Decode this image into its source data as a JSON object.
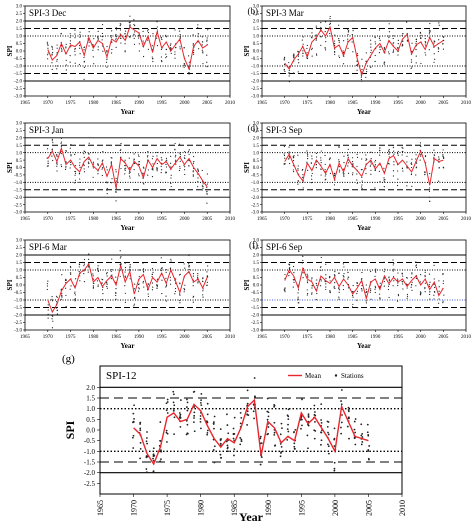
{
  "panels": [
    {
      "id": "a",
      "label": "(a)",
      "title": "SPI-3 Dec",
      "xlabel": "Year",
      "ylabel": "SPI",
      "x_ticks": [
        "1965",
        "1970",
        "1975",
        "1980",
        "1985",
        "1990",
        "1995",
        "2000",
        "2005",
        "2010"
      ],
      "y_ticks": [
        "3.0",
        "2.5",
        "2.0",
        "1.5",
        "1.0",
        "0.5",
        "0.0",
        "-0.5",
        "-1.0",
        "-1.5",
        "-2.0",
        "-2.5",
        "-3.0"
      ],
      "blue_lines": false
    },
    {
      "id": "b",
      "label": "(b)",
      "title": "SPI-3 Mar",
      "xlabel": "Year",
      "ylabel": "SPI",
      "x_ticks": [
        "1965",
        "1970",
        "1975",
        "1980",
        "1985",
        "1990",
        "1995",
        "2000",
        "2005",
        "2010"
      ],
      "y_ticks": [
        "3.0",
        "2.5",
        "2.0",
        "1.5",
        "1.0",
        "0.5",
        "0.0",
        "-0.5",
        "-1.0",
        "-1.5",
        "-2.0",
        "-2.5",
        "-3.0"
      ],
      "blue_lines": false
    },
    {
      "id": "c",
      "label": "(c)",
      "title": "SPI-3 Jan",
      "xlabel": "Year",
      "ylabel": "SPI",
      "x_ticks": [
        "1965",
        "1970",
        "1975",
        "1980",
        "1985",
        "1990",
        "1995",
        "2000",
        "2005",
        "2010"
      ],
      "y_ticks": [
        "3.0",
        "2.5",
        "2.0",
        "1.5",
        "1.0",
        "0.5",
        "0.0",
        "-0.5",
        "-1.0",
        "-1.5",
        "-2.0",
        "-2.5",
        "-3.0"
      ],
      "blue_lines": false
    },
    {
      "id": "d",
      "label": "(d)",
      "title": "SPI-3 Sep",
      "xlabel": "Year",
      "ylabel": "SPI",
      "x_ticks": [
        "1965",
        "1970",
        "1975",
        "1980",
        "1985",
        "1990",
        "1995",
        "2000",
        "2005",
        "2010"
      ],
      "y_ticks": [
        "3.0",
        "2.5",
        "2.0",
        "1.5",
        "1.0",
        "0.5",
        "0.0",
        "-0.5",
        "-1.0",
        "-1.5",
        "-2.0",
        "-2.5",
        "-3.0"
      ],
      "blue_lines": false
    },
    {
      "id": "e",
      "label": "(e)",
      "title": "SPI-6 Mar",
      "xlabel": "Year",
      "ylabel": "SPI",
      "x_ticks": [
        "1965",
        "1970",
        "1975",
        "1980",
        "1985",
        "1990",
        "1995",
        "2000",
        "2005",
        "2010"
      ],
      "y_ticks": [
        "3.0",
        "2.5",
        "2.0",
        "1.5",
        "1.0",
        "0.5",
        "0.0",
        "-0.5",
        "-1.0",
        "-1.5",
        "-2.0",
        "-2.5",
        "-3.0"
      ],
      "blue_lines": false
    },
    {
      "id": "f",
      "label": "(f)",
      "title": "SPI-6 Sep",
      "xlabel": "Year",
      "ylabel": "SPI",
      "x_ticks": [
        "1965",
        "1970",
        "1975",
        "1980",
        "1985",
        "1990",
        "1995",
        "2000",
        "2005",
        "2010"
      ],
      "y_ticks": [
        "3.0",
        "2.5",
        "2.0",
        "1.5",
        "1.0",
        "0.5",
        "0.0",
        "-0.5",
        "-1.0",
        "-1.5",
        "-2.0",
        "-2.5",
        "-3.0"
      ],
      "blue_lines": true
    },
    {
      "id": "g",
      "label": "(g)",
      "title": "SPI-12",
      "xlabel": "Year",
      "ylabel": "SPI",
      "x_ticks": [
        "1965",
        "1970",
        "1975",
        "1980",
        "1985",
        "1990",
        "1995",
        "2000",
        "2005",
        "2010"
      ],
      "y_ticks": [
        "3.0",
        "2.5",
        "2.0",
        "1.5",
        "1.0",
        "0.5",
        "0.0",
        "-0.5",
        "-1.0",
        "-1.5",
        "-2.0",
        "-2.5",
        "-3.0"
      ],
      "legend": [
        "Mean",
        "Stations"
      ],
      "blue_lines": false
    }
  ],
  "colors": {
    "mean_line": "#e8262c",
    "stations": "#222222",
    "threshold_lines": "#000000",
    "blue_lines": "#3a5bd9"
  },
  "chart_data": [
    {
      "panel": "a",
      "type": "line",
      "title": "SPI-3 Dec",
      "xlabel": "Year",
      "ylabel": "SPI",
      "xlim": [
        1965,
        2010
      ],
      "ylim": [
        -3,
        3
      ],
      "grid": false,
      "reference_lines": [
        {
          "y": 2.0,
          "style": "solid"
        },
        {
          "y": 1.5,
          "style": "dashed"
        },
        {
          "y": 1.0,
          "style": "dotted"
        },
        {
          "y": -1.0,
          "style": "dotted"
        },
        {
          "y": -1.5,
          "style": "dashed"
        },
        {
          "y": -2.0,
          "style": "solid"
        }
      ],
      "x": [
        1970,
        1971,
        1972,
        1973,
        1974,
        1975,
        1976,
        1977,
        1978,
        1979,
        1980,
        1981,
        1982,
        1983,
        1984,
        1985,
        1986,
        1987,
        1988,
        1989,
        1990,
        1991,
        1992,
        1993,
        1994,
        1995,
        1996,
        1997,
        1998,
        1999,
        2000,
        2001,
        2002,
        2003,
        2004,
        2005
      ],
      "series": [
        {
          "name": "Mean",
          "values": [
            0.1,
            -0.6,
            -0.3,
            0.5,
            -0.2,
            0.4,
            0.3,
            0.6,
            -0.3,
            0.9,
            0.2,
            0.7,
            0.5,
            -0.4,
            0.8,
            0.6,
            1.1,
            0.7,
            1.6,
            1.4,
            1.2,
            0.3,
            1.0,
            -0.1,
            1.3,
            0.2,
            0.6,
            0.0,
            0.4,
            0.8,
            -0.5,
            -1.2,
            0.3,
            0.7,
            0.2,
            0.4
          ]
        }
      ]
    },
    {
      "panel": "b",
      "type": "line",
      "title": "SPI-3 Mar",
      "xlabel": "Year",
      "ylabel": "SPI",
      "xlim": [
        1965,
        2010
      ],
      "ylim": [
        -3,
        3
      ],
      "grid": false,
      "reference_lines": [
        {
          "y": 2.0,
          "style": "solid"
        },
        {
          "y": 1.5,
          "style": "dashed"
        },
        {
          "y": 1.0,
          "style": "dotted"
        },
        {
          "y": -1.0,
          "style": "dotted"
        },
        {
          "y": -1.5,
          "style": "dashed"
        },
        {
          "y": -2.0,
          "style": "solid"
        }
      ],
      "x": [
        1970,
        1971,
        1972,
        1973,
        1974,
        1975,
        1976,
        1977,
        1978,
        1979,
        1980,
        1981,
        1982,
        1983,
        1984,
        1985,
        1986,
        1987,
        1988,
        1989,
        1990,
        1991,
        1992,
        1993,
        1994,
        1995,
        1996,
        1997,
        1998,
        1999,
        2000,
        2001,
        2002,
        2003,
        2004,
        2005
      ],
      "series": [
        {
          "name": "Mean",
          "values": [
            -0.8,
            -1.2,
            -0.6,
            -0.2,
            0.3,
            -0.4,
            0.6,
            0.9,
            1.4,
            1.0,
            1.6,
            0.2,
            0.4,
            -0.3,
            0.6,
            0.9,
            -0.5,
            -1.6,
            -0.8,
            -0.3,
            0.2,
            0.5,
            -0.1,
            0.7,
            0.3,
            0.0,
            0.8,
            1.1,
            -0.2,
            0.4,
            0.6,
            0.1,
            0.9,
            0.3,
            0.5,
            0.7
          ]
        }
      ]
    },
    {
      "panel": "c",
      "type": "line",
      "title": "SPI-3 Jan",
      "xlabel": "Year",
      "ylabel": "SPI",
      "xlim": [
        1965,
        2010
      ],
      "ylim": [
        -3,
        3
      ],
      "grid": false,
      "reference_lines": [
        {
          "y": 2.0,
          "style": "solid"
        },
        {
          "y": 1.5,
          "style": "dashed"
        },
        {
          "y": 1.0,
          "style": "dotted"
        },
        {
          "y": -1.0,
          "style": "dotted"
        },
        {
          "y": -1.5,
          "style": "dashed"
        },
        {
          "y": -2.0,
          "style": "solid"
        }
      ],
      "x": [
        1970,
        1971,
        1972,
        1973,
        1974,
        1975,
        1976,
        1977,
        1978,
        1979,
        1980,
        1981,
        1982,
        1983,
        1984,
        1985,
        1986,
        1987,
        1988,
        1989,
        1990,
        1991,
        1992,
        1993,
        1994,
        1995,
        1996,
        1997,
        1998,
        1999,
        2000,
        2001,
        2002,
        2003,
        2004,
        2005
      ],
      "series": [
        {
          "name": "Mean",
          "values": [
            0.6,
            1.1,
            0.4,
            1.3,
            0.2,
            0.5,
            0.0,
            -0.3,
            0.4,
            0.7,
            0.1,
            -0.2,
            0.3,
            -0.6,
            0.2,
            -1.4,
            0.6,
            0.3,
            -0.2,
            0.4,
            0.1,
            -0.7,
            0.5,
            0.0,
            0.6,
            0.2,
            0.4,
            -0.1,
            0.3,
            0.7,
            0.2,
            0.6,
            0.0,
            -0.4,
            -0.9,
            -1.3
          ]
        }
      ]
    },
    {
      "panel": "d",
      "type": "line",
      "title": "SPI-3 Sep",
      "xlabel": "Year",
      "ylabel": "SPI",
      "xlim": [
        1965,
        2010
      ],
      "ylim": [
        -3,
        3
      ],
      "grid": false,
      "reference_lines": [
        {
          "y": 2.0,
          "style": "solid"
        },
        {
          "y": 1.5,
          "style": "dashed"
        },
        {
          "y": 1.0,
          "style": "dotted"
        },
        {
          "y": -1.0,
          "style": "dotted"
        },
        {
          "y": -1.5,
          "style": "dashed"
        },
        {
          "y": -2.0,
          "style": "solid"
        }
      ],
      "x": [
        1970,
        1971,
        1972,
        1973,
        1974,
        1975,
        1976,
        1977,
        1978,
        1979,
        1980,
        1981,
        1982,
        1983,
        1984,
        1985,
        1986,
        1987,
        1988,
        1989,
        1990,
        1991,
        1992,
        1993,
        1994,
        1995,
        1996,
        1997,
        1998,
        1999,
        2000,
        2001,
        2002,
        2003,
        2004,
        2005
      ],
      "series": [
        {
          "name": "Mean",
          "values": [
            0.4,
            0.9,
            0.2,
            -0.5,
            -0.9,
            0.3,
            -0.2,
            0.5,
            0.1,
            -0.4,
            0.2,
            -0.8,
            0.3,
            -0.3,
            0.6,
            0.1,
            -0.2,
            -0.6,
            0.2,
            0.5,
            -0.1,
            0.3,
            -0.4,
            0.6,
            0.8,
            0.2,
            0.5,
            0.1,
            -0.3,
            0.4,
            1.1,
            0.3,
            -1.2,
            0.6,
            0.4,
            0.5
          ]
        }
      ]
    },
    {
      "panel": "e",
      "type": "line",
      "title": "SPI-6 Mar",
      "xlabel": "Year",
      "ylabel": "SPI",
      "xlim": [
        1965,
        2010
      ],
      "ylim": [
        -3,
        3
      ],
      "grid": false,
      "reference_lines": [
        {
          "y": 2.0,
          "style": "solid"
        },
        {
          "y": 1.5,
          "style": "dashed"
        },
        {
          "y": 1.0,
          "style": "dotted"
        },
        {
          "y": -1.0,
          "style": "dotted"
        },
        {
          "y": -1.5,
          "style": "dashed"
        },
        {
          "y": -2.0,
          "style": "solid"
        }
      ],
      "x": [
        1970,
        1971,
        1972,
        1973,
        1974,
        1975,
        1976,
        1977,
        1978,
        1979,
        1980,
        1981,
        1982,
        1983,
        1984,
        1985,
        1986,
        1987,
        1988,
        1989,
        1990,
        1991,
        1992,
        1993,
        1994,
        1995,
        1996,
        1997,
        1998,
        1999,
        2000,
        2001,
        2002,
        2003,
        2004,
        2005
      ],
      "series": [
        {
          "name": "Mean",
          "values": [
            -1.0,
            -1.8,
            -1.3,
            -0.4,
            0.1,
            0.4,
            -0.2,
            0.8,
            1.0,
            1.4,
            0.2,
            0.5,
            -0.1,
            0.3,
            0.6,
            0.0,
            1.3,
            0.2,
            0.9,
            -0.6,
            0.4,
            0.7,
            -0.3,
            0.5,
            0.2,
            0.8,
            0.1,
            1.0,
            0.3,
            -0.5,
            0.6,
            0.9,
            0.2,
            0.4,
            -0.2,
            0.5
          ]
        }
      ]
    },
    {
      "panel": "f",
      "type": "line",
      "title": "SPI-6 Sep",
      "xlabel": "Year",
      "ylabel": "SPI",
      "xlim": [
        1965,
        2010
      ],
      "ylim": [
        -3,
        3
      ],
      "grid": false,
      "reference_lines": [
        {
          "y": 2.0,
          "style": "solid"
        },
        {
          "y": 1.5,
          "style": "dashed"
        },
        {
          "y": 1.0,
          "style": "dotted"
        },
        {
          "y": -1.0,
          "style": "dotted"
        },
        {
          "y": -1.5,
          "style": "dashed"
        },
        {
          "y": -2.0,
          "style": "solid"
        }
      ],
      "x": [
        1970,
        1971,
        1972,
        1973,
        1974,
        1975,
        1976,
        1977,
        1978,
        1979,
        1980,
        1981,
        1982,
        1983,
        1984,
        1985,
        1986,
        1987,
        1988,
        1989,
        1990,
        1991,
        1992,
        1993,
        1994,
        1995,
        1996,
        1997,
        1998,
        1999,
        2000,
        2001,
        2002,
        2003,
        2004,
        2005
      ],
      "series": [
        {
          "name": "Mean",
          "values": [
            0.3,
            1.0,
            0.6,
            -0.2,
            1.1,
            0.4,
            0.2,
            -0.4,
            0.6,
            0.3,
            0.1,
            0.5,
            -0.1,
            0.4,
            0.0,
            -0.6,
            -0.2,
            0.3,
            -0.9,
            0.2,
            0.4,
            -0.3,
            0.6,
            0.1,
            0.5,
            0.2,
            0.4,
            -0.1,
            0.3,
            0.6,
            0.0,
            0.4,
            -0.3,
            0.2,
            -0.7,
            -0.2
          ]
        }
      ]
    },
    {
      "panel": "g",
      "type": "line",
      "title": "SPI-12",
      "xlabel": "Year",
      "ylabel": "SPI",
      "xlim": [
        1965,
        2010
      ],
      "ylim": [
        -3,
        3
      ],
      "grid": false,
      "legend_placement": "top-right",
      "reference_lines": [
        {
          "y": 2.0,
          "style": "solid"
        },
        {
          "y": 1.5,
          "style": "dashed"
        },
        {
          "y": 1.0,
          "style": "dotted"
        },
        {
          "y": -1.0,
          "style": "dotted"
        },
        {
          "y": -1.5,
          "style": "dashed"
        },
        {
          "y": -2.0,
          "style": "solid"
        }
      ],
      "x": [
        1970,
        1971,
        1972,
        1973,
        1974,
        1975,
        1976,
        1977,
        1978,
        1979,
        1980,
        1981,
        1982,
        1983,
        1984,
        1985,
        1986,
        1987,
        1988,
        1989,
        1990,
        1991,
        1992,
        1993,
        1994,
        1995,
        1996,
        1997,
        1998,
        1999,
        2000,
        2001,
        2002,
        2003,
        2004,
        2005
      ],
      "series": [
        {
          "name": "Mean",
          "values": [
            0.1,
            -0.2,
            -1.1,
            -1.6,
            -0.8,
            0.6,
            0.8,
            0.4,
            0.5,
            1.2,
            0.9,
            0.2,
            -0.4,
            -0.8,
            -0.4,
            -0.6,
            0.1,
            1.1,
            1.4,
            -1.2,
            0.4,
            0.1,
            -0.6,
            -0.3,
            -0.5,
            0.8,
            0.3,
            0.6,
            0.1,
            -0.4,
            -1.0,
            1.1,
            0.4,
            -0.3,
            -0.4,
            -0.5
          ]
        },
        {
          "name": "Stations",
          "type": "scatter",
          "spread": 0.75
        }
      ]
    }
  ]
}
